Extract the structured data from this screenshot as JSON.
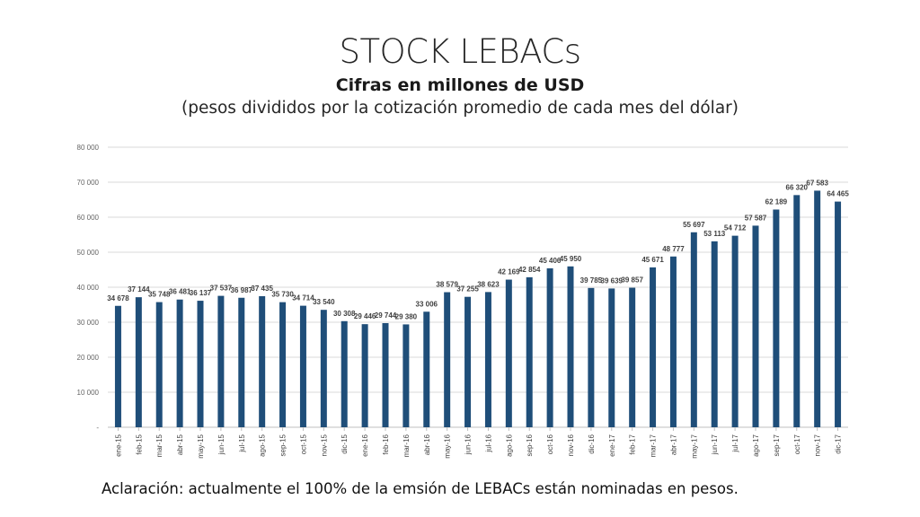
{
  "header": {
    "title": "STOCK LEBACs",
    "subtitle": "Cifras en millones de USD",
    "subtitle2": "(pesos divididos por la cotización promedio de cada mes del dólar)"
  },
  "footnote": "Aclaración: actualmente el 100% de la emsión de LEBACs están nominadas en pesos.",
  "chart_data": {
    "type": "bar",
    "categories": [
      "ene-15",
      "feb-15",
      "mar-15",
      "abr-15",
      "may-15",
      "jun-15",
      "jul-15",
      "ago-15",
      "sep-15",
      "oct-15",
      "nov-15",
      "dic-15",
      "ene-16",
      "feb-16",
      "mar-16",
      "abr-16",
      "may-16",
      "jun-16",
      "jul-16",
      "ago-16",
      "sep-16",
      "oct-16",
      "nov-16",
      "dic-16",
      "ene-17",
      "feb-17",
      "mar-17",
      "abr-17",
      "may-17",
      "jun-17",
      "jul-17",
      "ago-17",
      "sep-17",
      "oct-17",
      "nov-17",
      "dic-17"
    ],
    "values": [
      34678,
      37144,
      35748,
      36481,
      36137,
      37537,
      36987,
      37435,
      35730,
      34714,
      33540,
      30308,
      29446,
      29744,
      29380,
      33006,
      38579,
      37255,
      38623,
      42169,
      42854,
      45406,
      45950,
      39785,
      39639,
      39857,
      45671,
      48777,
      55697,
      53113,
      54712,
      57587,
      62189,
      66320,
      67583,
      64465
    ],
    "value_labels": [
      "34 678",
      "37 144",
      "35 748",
      "36 481",
      "36 137",
      "37 537",
      "36 987",
      "37 435",
      "35 730",
      "34 714",
      "33 540",
      "30 308",
      "29 446",
      "29 744",
      "29 380",
      "33 006",
      "38 579",
      "37 255",
      "38 623",
      "42 169",
      "42 854",
      "45 406",
      "45 950",
      "39 785",
      "39 639",
      "39 857",
      "45 671",
      "48 777",
      "55 697",
      "53 113",
      "54 712",
      "57 587",
      "62 189",
      "66 320",
      "67 583",
      "64 465"
    ],
    "ylim": [
      0,
      80000
    ],
    "yticks": [
      0,
      10000,
      20000,
      30000,
      40000,
      50000,
      60000,
      70000,
      80000
    ],
    "ytick_labels": [
      "-",
      "10 000",
      "20 000",
      "30 000",
      "40 000",
      "50 000",
      "60 000",
      "70 000",
      "80 000"
    ],
    "grid": true,
    "bar_color": "#1f4e79",
    "grid_color": "#d9d9d9"
  }
}
